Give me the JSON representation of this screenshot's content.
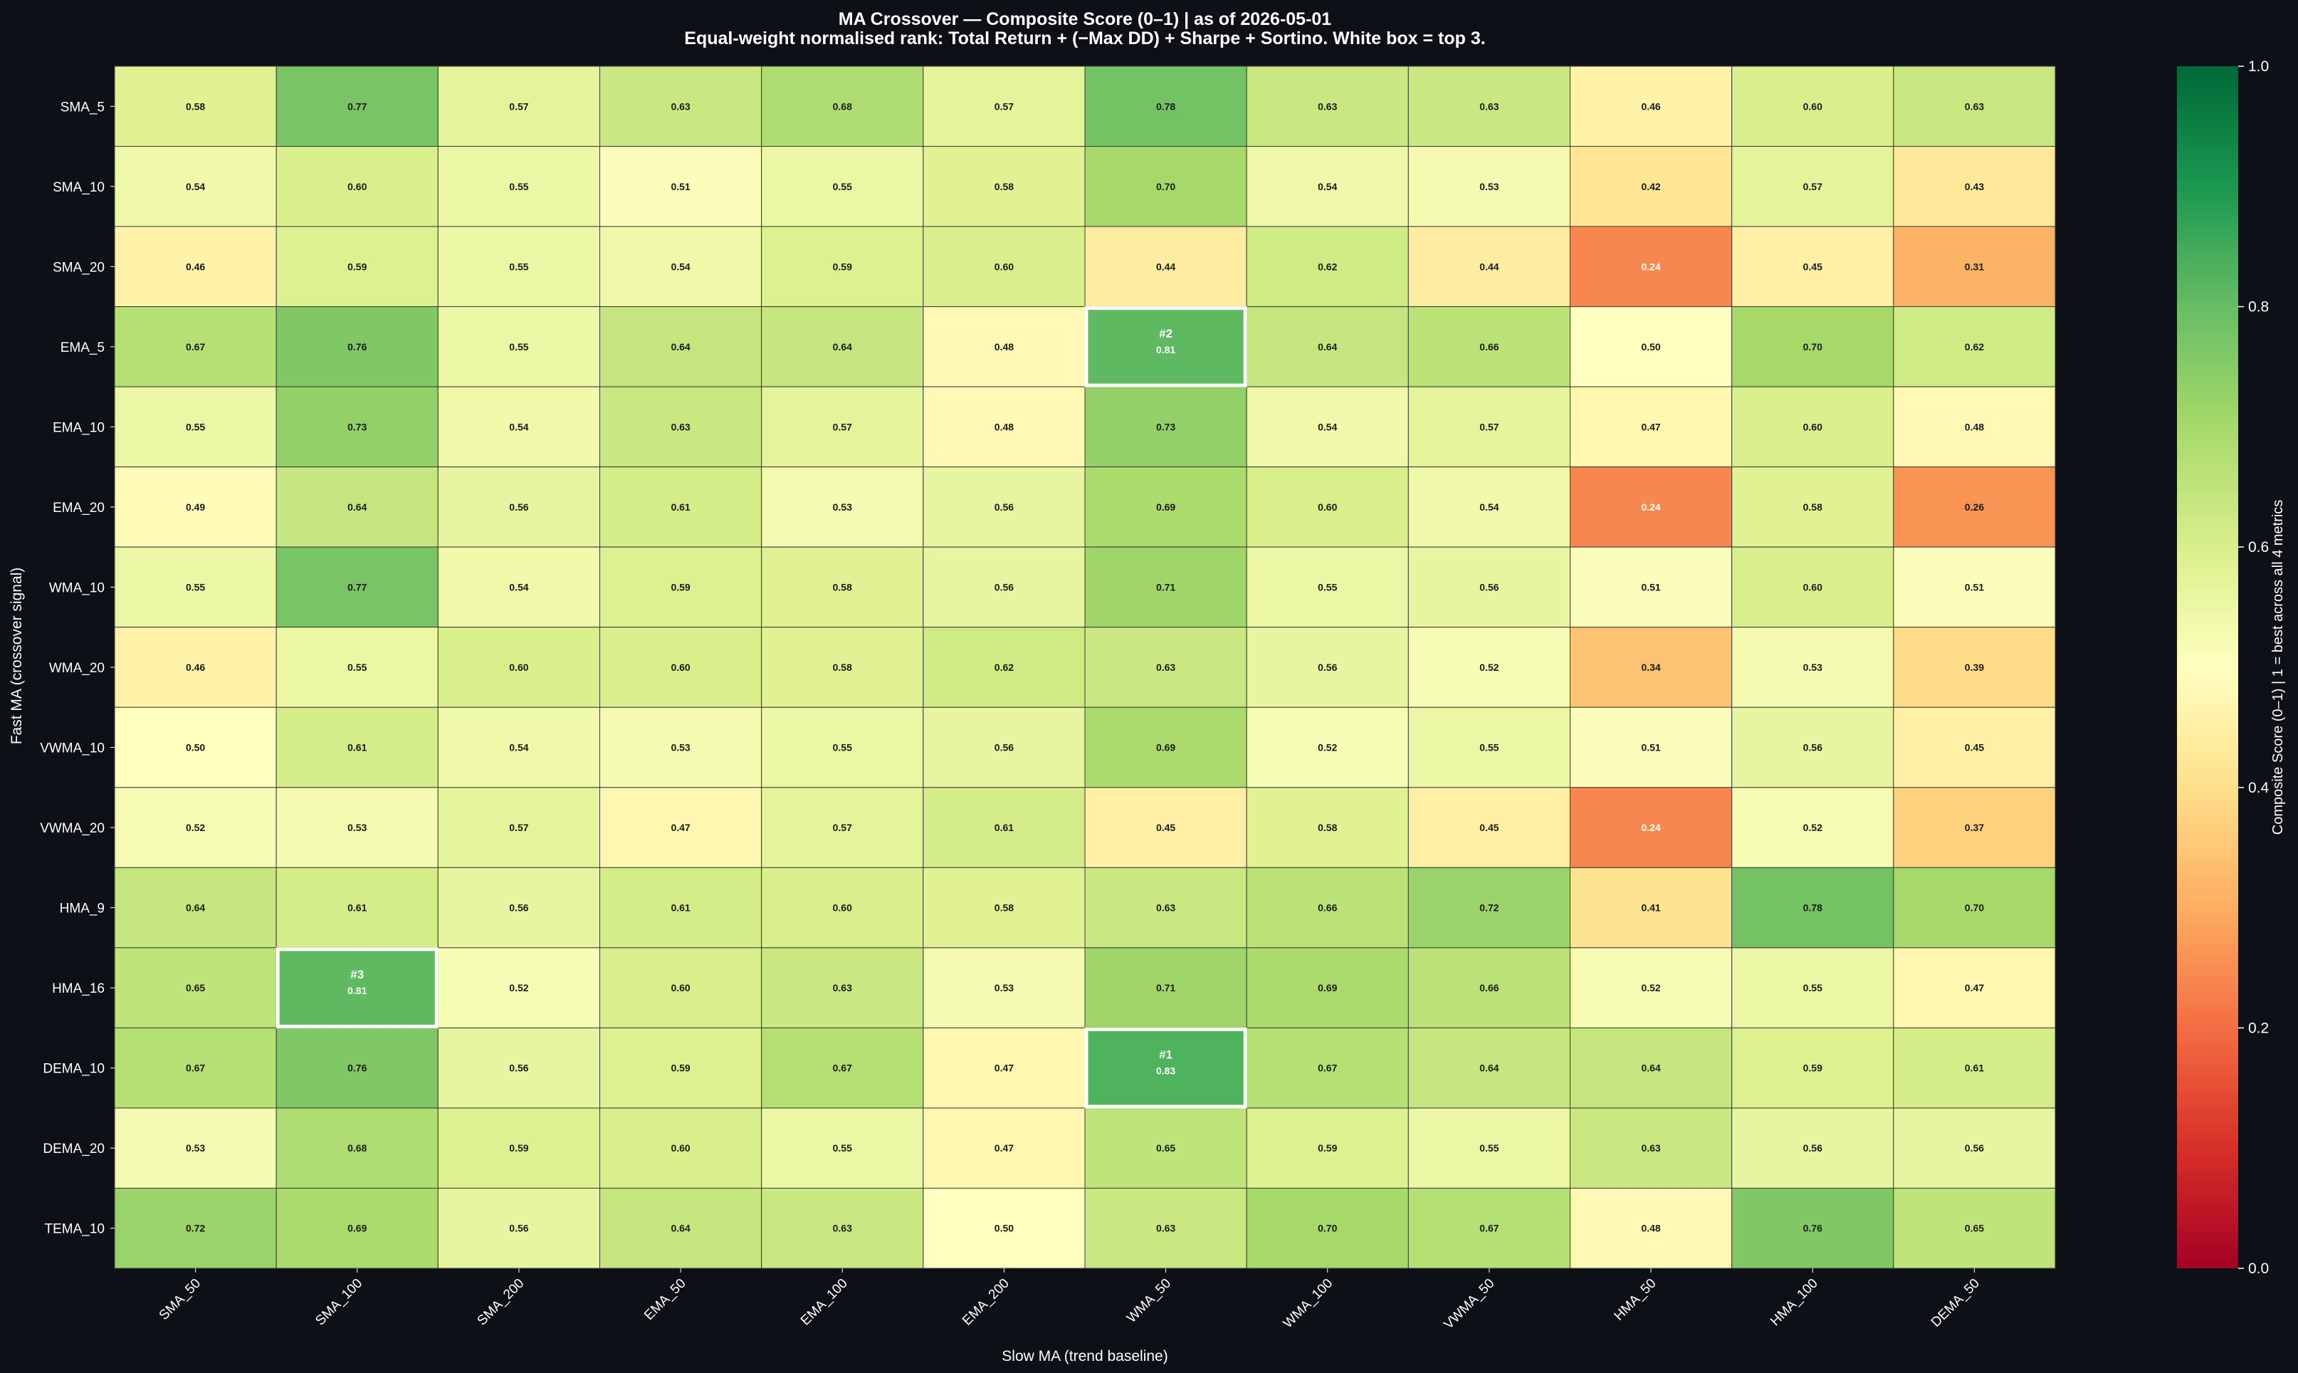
{
  "chart_data": {
    "type": "heatmap",
    "title": "MA Crossover — Composite Score (0–1)  |  as of 2026-05-01",
    "subtitle": "Equal-weight normalised rank: Total Return + (−Max DD) + Sharpe + Sortino. White box = top 3.",
    "xlabel": "Slow MA  (trend baseline)",
    "ylabel": "Fast MA  (crossover signal)",
    "x_categories": [
      "SMA_50",
      "SMA_100",
      "SMA_200",
      "EMA_50",
      "EMA_100",
      "EMA_200",
      "WMA_50",
      "WMA_100",
      "VWMA_50",
      "HMA_50",
      "HMA_100",
      "DEMA_50"
    ],
    "y_categories": [
      "SMA_5",
      "SMA_10",
      "SMA_20",
      "EMA_5",
      "EMA_10",
      "EMA_20",
      "WMA_10",
      "WMA_20",
      "VWMA_10",
      "VWMA_20",
      "HMA_9",
      "HMA_16",
      "DEMA_10",
      "DEMA_20",
      "TEMA_10"
    ],
    "values": [
      [
        0.58,
        0.77,
        0.57,
        0.63,
        0.68,
        0.57,
        0.78,
        0.63,
        0.63,
        0.46,
        0.6,
        0.63
      ],
      [
        0.54,
        0.6,
        0.55,
        0.51,
        0.55,
        0.58,
        0.7,
        0.54,
        0.53,
        0.42,
        0.57,
        0.43
      ],
      [
        0.46,
        0.59,
        0.55,
        0.54,
        0.59,
        0.6,
        0.44,
        0.62,
        0.44,
        0.24,
        0.45,
        0.31
      ],
      [
        0.67,
        0.76,
        0.55,
        0.64,
        0.64,
        0.48,
        0.81,
        0.64,
        0.66,
        0.5,
        0.7,
        0.62
      ],
      [
        0.55,
        0.73,
        0.54,
        0.63,
        0.57,
        0.48,
        0.73,
        0.54,
        0.57,
        0.47,
        0.6,
        0.48
      ],
      [
        0.49,
        0.64,
        0.56,
        0.61,
        0.53,
        0.56,
        0.69,
        0.6,
        0.54,
        0.24,
        0.58,
        0.26
      ],
      [
        0.55,
        0.77,
        0.54,
        0.59,
        0.58,
        0.56,
        0.71,
        0.55,
        0.56,
        0.51,
        0.6,
        0.51
      ],
      [
        0.46,
        0.55,
        0.6,
        0.6,
        0.58,
        0.62,
        0.63,
        0.56,
        0.52,
        0.34,
        0.53,
        0.39
      ],
      [
        0.5,
        0.61,
        0.54,
        0.53,
        0.55,
        0.56,
        0.69,
        0.52,
        0.55,
        0.51,
        0.56,
        0.45
      ],
      [
        0.52,
        0.53,
        0.57,
        0.47,
        0.57,
        0.61,
        0.45,
        0.58,
        0.45,
        0.24,
        0.52,
        0.37
      ],
      [
        0.64,
        0.61,
        0.56,
        0.61,
        0.6,
        0.58,
        0.63,
        0.66,
        0.72,
        0.41,
        0.78,
        0.7
      ],
      [
        0.65,
        0.81,
        0.52,
        0.6,
        0.63,
        0.53,
        0.71,
        0.69,
        0.66,
        0.52,
        0.55,
        0.47
      ],
      [
        0.67,
        0.76,
        0.56,
        0.59,
        0.67,
        0.47,
        0.83,
        0.67,
        0.64,
        0.64,
        0.59,
        0.61
      ],
      [
        0.53,
        0.68,
        0.59,
        0.6,
        0.55,
        0.47,
        0.65,
        0.59,
        0.55,
        0.63,
        0.56,
        0.56
      ],
      [
        0.72,
        0.69,
        0.56,
        0.64,
        0.63,
        0.5,
        0.63,
        0.7,
        0.67,
        0.48,
        0.76,
        0.65
      ]
    ],
    "top3": [
      {
        "label": "#1",
        "row": "DEMA_10",
        "col": "WMA_50"
      },
      {
        "label": "#2",
        "row": "EMA_5",
        "col": "WMA_50"
      },
      {
        "label": "#3",
        "row": "HMA_16",
        "col": "SMA_100"
      }
    ],
    "colormap": "RdYlGn",
    "highlight_color": "#ffffff",
    "colorbar": {
      "label": "Composite Score (0–1)  |  1 = best across all 4 metrics",
      "range": [
        0.0,
        1.0
      ],
      "ticks": [
        "0.0",
        "0.2",
        "0.4",
        "0.6",
        "0.8",
        "1.0"
      ]
    },
    "grid": true,
    "legend": "none"
  }
}
